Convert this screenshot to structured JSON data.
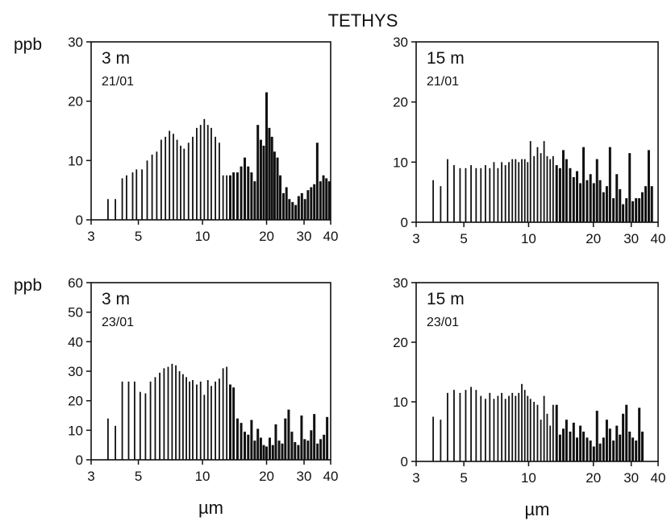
{
  "figure": {
    "title": "TETHYS"
  },
  "chart_data": [
    {
      "type": "bar",
      "depth": "3 m",
      "date": "21/01",
      "ylabel": "ppb",
      "xlabel": "",
      "x_scale": "log",
      "xlim": [
        3,
        40
      ],
      "ylim": [
        0,
        30
      ],
      "x_ticks": [
        3,
        5,
        10,
        20,
        30,
        40
      ],
      "y_ticks": [
        0,
        10,
        20,
        30
      ],
      "grid": false,
      "x": [
        3.6,
        3.9,
        4.2,
        4.4,
        4.7,
        4.9,
        5.2,
        5.5,
        5.8,
        6.1,
        6.4,
        6.7,
        7.0,
        7.3,
        7.6,
        7.9,
        8.2,
        8.6,
        9.0,
        9.4,
        9.8,
        10.2,
        10.6,
        11.0,
        11.5,
        12.0,
        12.5,
        13.0,
        13.5,
        14.0,
        14.6,
        15.2,
        15.8,
        16.4,
        17.0,
        17.6,
        18.2,
        18.8,
        19.4,
        20.0,
        20.6,
        21.2,
        21.8,
        22.5,
        23.2,
        24.0,
        24.8,
        25.6,
        26.5,
        27.4,
        28.3,
        29.3,
        30.3,
        31.3,
        32.4,
        33.5,
        34.6,
        35.8,
        37.0,
        38.2,
        39.4
      ],
      "values": [
        3.5,
        3.5,
        7.0,
        7.5,
        8.0,
        8.5,
        8.5,
        10.0,
        11.0,
        11.5,
        13.5,
        14.0,
        15.0,
        14.5,
        13.5,
        12.5,
        12.0,
        13.0,
        14.0,
        15.5,
        16.0,
        17.0,
        16.0,
        15.5,
        14.0,
        13.0,
        7.5,
        7.5,
        7.5,
        8.0,
        8.0,
        9.0,
        10.5,
        9.0,
        8.0,
        6.5,
        16.0,
        13.5,
        12.5,
        21.5,
        15.5,
        14.0,
        11.5,
        10.5,
        7.5,
        4.5,
        5.5,
        3.5,
        3.0,
        2.5,
        4.0,
        4.5,
        3.5,
        5.0,
        5.5,
        6.0,
        13.0,
        6.5,
        7.5,
        7.0,
        6.5
      ]
    },
    {
      "type": "bar",
      "depth": "15 m",
      "date": "21/01",
      "ylabel": "",
      "xlabel": "",
      "x_scale": "log",
      "xlim": [
        3,
        40
      ],
      "ylim": [
        0,
        30
      ],
      "x_ticks": [
        3,
        5,
        10,
        20,
        30,
        40
      ],
      "y_ticks": [
        0,
        10,
        20,
        30
      ],
      "grid": false,
      "x": [
        3.6,
        3.9,
        4.2,
        4.5,
        4.8,
        5.1,
        5.4,
        5.7,
        6.0,
        6.3,
        6.6,
        6.9,
        7.2,
        7.5,
        7.8,
        8.1,
        8.4,
        8.7,
        9.0,
        9.3,
        9.6,
        9.9,
        10.2,
        10.6,
        11.0,
        11.4,
        11.8,
        12.2,
        12.6,
        13.0,
        13.5,
        14.0,
        14.5,
        15.0,
        15.6,
        16.2,
        16.8,
        17.4,
        18.0,
        18.7,
        19.4,
        20.1,
        20.8,
        21.5,
        22.3,
        23.1,
        23.9,
        24.8,
        25.7,
        26.6,
        27.5,
        28.5,
        29.5,
        30.5,
        31.6,
        32.7,
        33.8,
        35.0,
        36.2,
        37.4
      ],
      "values": [
        7.0,
        6.0,
        10.5,
        9.5,
        9.0,
        9.0,
        9.5,
        9.0,
        9.0,
        9.5,
        9.0,
        10.0,
        9.0,
        10.0,
        9.5,
        10.0,
        10.5,
        10.5,
        10.0,
        10.5,
        10.5,
        10.0,
        13.5,
        11.0,
        12.5,
        11.5,
        13.5,
        11.0,
        10.5,
        11.0,
        9.5,
        9.0,
        12.0,
        10.5,
        9.0,
        7.5,
        8.5,
        6.5,
        12.5,
        7.0,
        8.0,
        6.5,
        10.5,
        7.0,
        5.0,
        6.0,
        12.5,
        4.0,
        8.0,
        5.5,
        3.0,
        4.0,
        11.5,
        3.5,
        4.0,
        4.0,
        5.0,
        6.0,
        12.0,
        6.0
      ]
    },
    {
      "type": "bar",
      "depth": "3 m",
      "date": "23/01",
      "ylabel": "ppb",
      "xlabel": "µm",
      "x_scale": "log",
      "xlim": [
        3,
        40
      ],
      "ylim": [
        0,
        60
      ],
      "x_ticks": [
        3,
        5,
        10,
        20,
        30,
        40
      ],
      "y_ticks": [
        0,
        10,
        20,
        30,
        40,
        50,
        60
      ],
      "grid": false,
      "x": [
        3.6,
        3.9,
        4.2,
        4.5,
        4.8,
        5.1,
        5.4,
        5.7,
        6.0,
        6.3,
        6.6,
        6.9,
        7.2,
        7.5,
        7.8,
        8.1,
        8.4,
        8.7,
        9.0,
        9.4,
        9.8,
        10.2,
        10.6,
        11.0,
        11.5,
        12.0,
        12.5,
        13.0,
        13.5,
        14.0,
        14.6,
        15.2,
        15.8,
        16.4,
        17.0,
        17.6,
        18.2,
        18.8,
        19.4,
        20.0,
        20.7,
        21.4,
        22.1,
        22.9,
        23.7,
        24.5,
        25.4,
        26.3,
        27.2,
        28.2,
        29.2,
        30.2,
        31.3,
        32.4,
        33.5,
        34.7,
        35.9,
        37.2,
        38.5
      ],
      "values": [
        14.0,
        11.5,
        26.5,
        26.5,
        26.5,
        23.0,
        22.5,
        26.5,
        28.0,
        29.5,
        31.0,
        31.5,
        32.5,
        32.0,
        30.0,
        29.0,
        28.0,
        26.5,
        27.0,
        25.5,
        26.5,
        22.0,
        27.0,
        25.0,
        26.5,
        27.5,
        31.0,
        31.5,
        25.5,
        24.5,
        14.0,
        12.5,
        9.5,
        8.5,
        13.5,
        6.5,
        10.5,
        7.5,
        5.0,
        4.5,
        7.5,
        5.0,
        12.0,
        6.5,
        5.5,
        14.0,
        17.0,
        9.5,
        6.0,
        5.0,
        15.0,
        7.0,
        6.5,
        10.0,
        15.5,
        5.5,
        7.0,
        8.5,
        14.5
      ]
    },
    {
      "type": "bar",
      "depth": "15 m",
      "date": "23/01",
      "ylabel": "",
      "xlabel": "µm",
      "x_scale": "log",
      "xlim": [
        3,
        40
      ],
      "ylim": [
        0,
        30
      ],
      "x_ticks": [
        3,
        5,
        10,
        20,
        30,
        40
      ],
      "y_ticks": [
        0,
        10,
        20,
        30
      ],
      "grid": false,
      "x": [
        3.6,
        3.9,
        4.2,
        4.5,
        4.8,
        5.1,
        5.4,
        5.7,
        6.0,
        6.3,
        6.6,
        6.9,
        7.2,
        7.5,
        7.8,
        8.1,
        8.4,
        8.7,
        9.0,
        9.3,
        9.6,
        9.9,
        10.2,
        10.6,
        11.0,
        11.4,
        11.8,
        12.2,
        12.6,
        13.0,
        13.5,
        14.0,
        14.5,
        15.0,
        15.6,
        16.2,
        16.8,
        17.4,
        18.0,
        18.7,
        19.4,
        20.1,
        20.8,
        21.5,
        22.3,
        23.1,
        23.9,
        24.8,
        25.7,
        26.6,
        27.5,
        28.5,
        29.5,
        30.5,
        31.6,
        32.7,
        33.8
      ],
      "values": [
        7.5,
        7.0,
        11.5,
        12.0,
        11.5,
        12.0,
        12.5,
        12.0,
        11.0,
        10.5,
        11.5,
        10.5,
        11.0,
        11.5,
        10.5,
        11.0,
        11.5,
        11.0,
        11.5,
        13.0,
        12.0,
        11.0,
        10.5,
        10.0,
        9.5,
        7.0,
        11.0,
        8.0,
        6.0,
        9.5,
        9.5,
        4.5,
        5.5,
        7.0,
        5.0,
        6.5,
        4.0,
        6.0,
        5.0,
        4.0,
        3.5,
        2.5,
        8.5,
        3.0,
        4.0,
        7.0,
        5.5,
        3.5,
        6.0,
        4.5,
        8.0,
        9.5,
        5.0,
        4.0,
        3.5,
        9.0,
        5.0
      ]
    }
  ]
}
